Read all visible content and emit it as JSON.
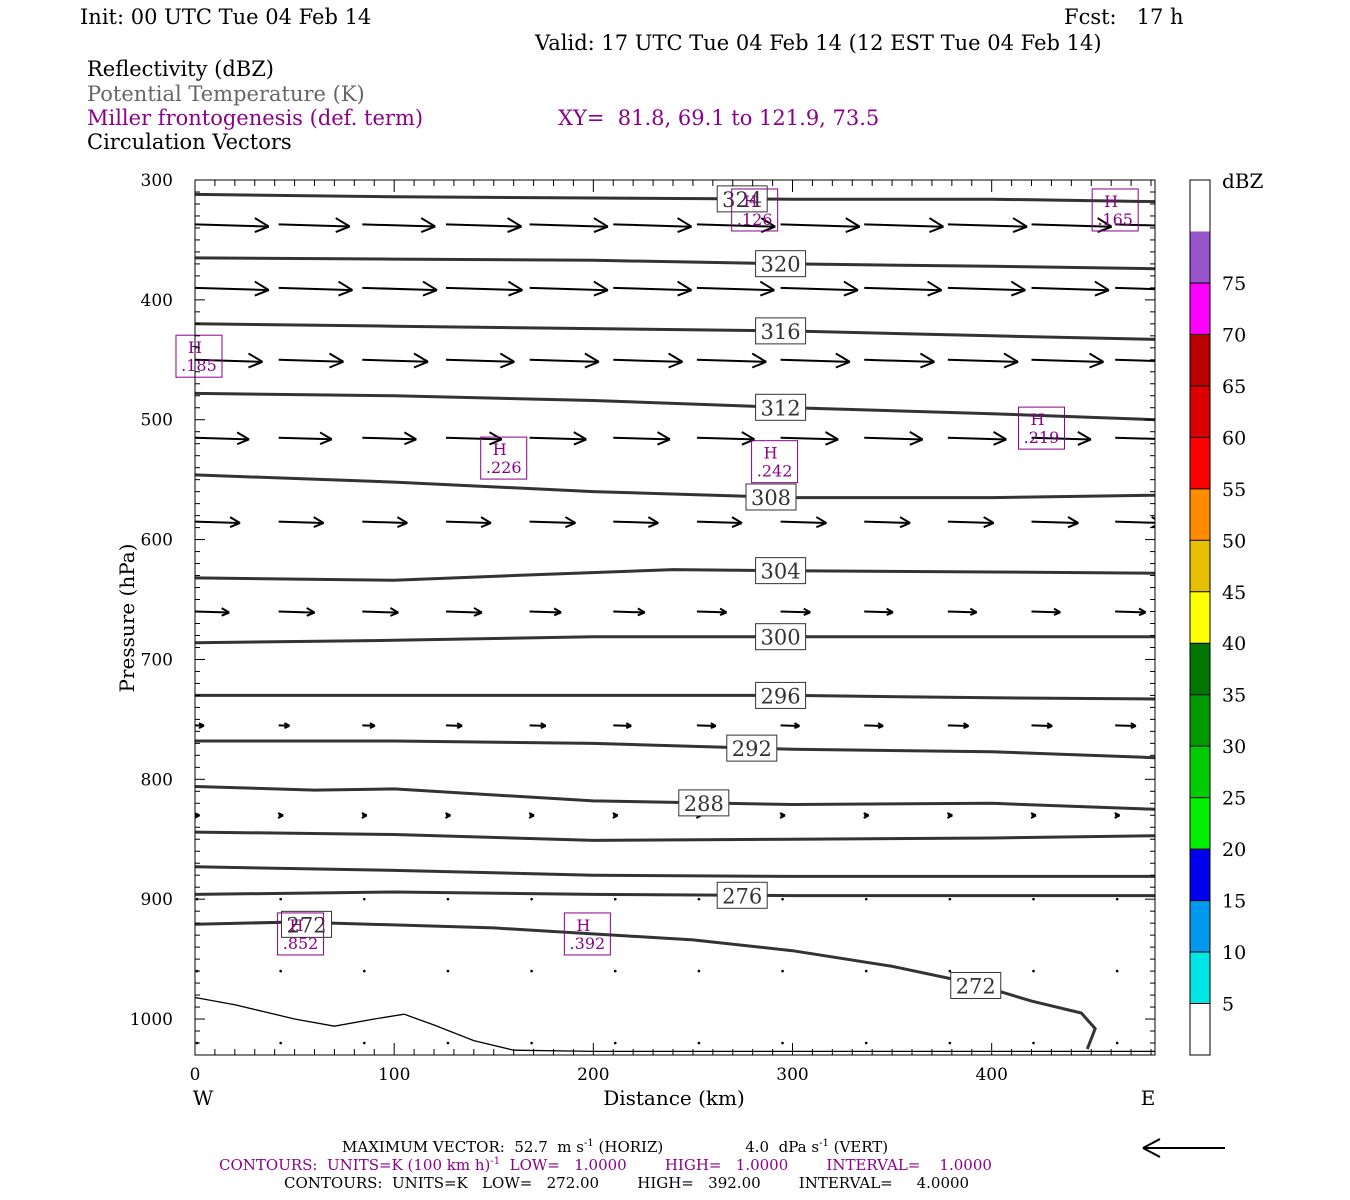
{
  "header": {
    "init": "Init: 00 UTC Tue 04 Feb 14",
    "fcst": "Fcst:   17 h",
    "valid": "Valid: 17 UTC Tue 04 Feb 14 (12 EST Tue 04 Feb 14)",
    "field1": "Reflectivity (dBZ)",
    "field2": "Potential Temperature (K)",
    "field3": "Miller frontogenesis (def. term)",
    "xy": "XY=  81.8, 69.1 to 121.9, 73.5",
    "field4": "Circulation Vectors"
  },
  "colors": {
    "theta": "#333333",
    "frontogenesis": "#8b008b",
    "vectors": "#000000"
  },
  "chart_data": {
    "type": "line",
    "xlabel": "Distance (km)",
    "ylabel": "Pressure (hPa)",
    "xlim": [
      0,
      482
    ],
    "ylim": [
      300,
      1030
    ],
    "y_scale": "linear-inverted",
    "x_ticks": [
      "0",
      "100",
      "200",
      "300",
      "400"
    ],
    "y_ticks": [
      "300",
      "400",
      "500",
      "600",
      "700",
      "800",
      "900",
      "1000"
    ],
    "x_end_labels": {
      "left": "W",
      "right": "E"
    },
    "theta_contours": [
      {
        "label": "324",
        "points": [
          [
            0,
            312
          ],
          [
            100,
            314
          ],
          [
            200,
            315
          ],
          [
            300,
            316
          ],
          [
            400,
            316
          ],
          [
            482,
            318
          ]
        ]
      },
      {
        "label": "320",
        "points": [
          [
            0,
            365
          ],
          [
            100,
            366
          ],
          [
            200,
            367
          ],
          [
            300,
            370
          ],
          [
            400,
            372
          ],
          [
            482,
            374
          ]
        ]
      },
      {
        "label": "316",
        "points": [
          [
            0,
            420
          ],
          [
            100,
            422
          ],
          [
            200,
            424
          ],
          [
            300,
            426
          ],
          [
            400,
            430
          ],
          [
            482,
            433
          ]
        ]
      },
      {
        "label": "312",
        "points": [
          [
            0,
            478
          ],
          [
            100,
            480
          ],
          [
            200,
            484
          ],
          [
            300,
            490
          ],
          [
            400,
            495
          ],
          [
            482,
            500
          ]
        ]
      },
      {
        "label": "308",
        "points": [
          [
            0,
            546
          ],
          [
            100,
            552
          ],
          [
            200,
            560
          ],
          [
            300,
            565
          ],
          [
            400,
            565
          ],
          [
            482,
            563
          ]
        ]
      },
      {
        "label": "304",
        "points": [
          [
            0,
            632
          ],
          [
            100,
            634
          ],
          [
            160,
            630
          ],
          [
            240,
            625
          ],
          [
            300,
            626
          ],
          [
            400,
            627
          ],
          [
            482,
            628
          ]
        ]
      },
      {
        "label": "300",
        "points": [
          [
            0,
            686
          ],
          [
            100,
            684
          ],
          [
            200,
            681
          ],
          [
            300,
            681
          ],
          [
            400,
            681
          ],
          [
            482,
            681
          ]
        ]
      },
      {
        "label": "296",
        "points": [
          [
            0,
            730
          ],
          [
            100,
            730
          ],
          [
            200,
            730
          ],
          [
            300,
            730
          ],
          [
            400,
            732
          ],
          [
            482,
            733
          ]
        ]
      },
      {
        "label": "292",
        "points": [
          [
            0,
            768
          ],
          [
            100,
            768
          ],
          [
            200,
            770
          ],
          [
            300,
            775
          ],
          [
            400,
            777
          ],
          [
            482,
            782
          ]
        ]
      },
      {
        "label": "288",
        "points": [
          [
            0,
            806
          ],
          [
            60,
            809
          ],
          [
            100,
            808
          ],
          [
            140,
            812
          ],
          [
            200,
            818
          ],
          [
            300,
            821
          ],
          [
            400,
            820
          ],
          [
            482,
            825
          ]
        ]
      },
      {
        "label": "",
        "points": [
          [
            0,
            844
          ],
          [
            100,
            846
          ],
          [
            200,
            851
          ],
          [
            300,
            850
          ],
          [
            400,
            849
          ],
          [
            482,
            847
          ]
        ]
      },
      {
        "label": "",
        "points": [
          [
            0,
            873
          ],
          [
            100,
            876
          ],
          [
            200,
            880
          ],
          [
            300,
            881
          ],
          [
            400,
            881
          ],
          [
            482,
            881
          ]
        ]
      },
      {
        "label": "276",
        "points": [
          [
            0,
            896
          ],
          [
            100,
            894
          ],
          [
            200,
            896
          ],
          [
            300,
            897
          ],
          [
            400,
            897
          ],
          [
            482,
            897
          ]
        ]
      },
      {
        "label": "272",
        "points": [
          [
            0,
            921
          ],
          [
            50,
            919
          ],
          [
            150,
            924
          ],
          [
            250,
            934
          ],
          [
            300,
            943
          ],
          [
            350,
            956
          ],
          [
            390,
            970
          ],
          [
            420,
            985
          ],
          [
            445,
            995
          ],
          [
            452,
            1008
          ],
          [
            448,
            1025
          ]
        ]
      }
    ],
    "boundary_line": {
      "points": [
        [
          0,
          982
        ],
        [
          20,
          988
        ],
        [
          50,
          1000
        ],
        [
          70,
          1006
        ],
        [
          90,
          1000
        ],
        [
          105,
          996
        ],
        [
          120,
          1005
        ],
        [
          140,
          1018
        ],
        [
          160,
          1026
        ],
        [
          200,
          1027
        ],
        [
          300,
          1027
        ],
        [
          400,
          1027
        ],
        [
          482,
          1027
        ]
      ]
    },
    "frontogenesis_maxima": [
      {
        "label": "H",
        "value": ".126",
        "x": 281,
        "p": 325
      },
      {
        "label": "H",
        "value": ".165",
        "x": 462,
        "p": 325
      },
      {
        "label": "H",
        "value": ".185",
        "x": 2,
        "p": 447
      },
      {
        "label": "H",
        "value": ".219",
        "x": 425,
        "p": 507
      },
      {
        "label": "H",
        "value": ".226",
        "x": 155,
        "p": 532
      },
      {
        "label": "H",
        "value": ".242",
        "x": 291,
        "p": 535
      },
      {
        "label": "H",
        "value": ".852",
        "x": 53,
        "p": 929
      },
      {
        "label": "H",
        "value": ".392",
        "x": 197,
        "p": 929
      }
    ],
    "circulation_vectors": {
      "x_columns": [
        0,
        42,
        84,
        126,
        168,
        210,
        252,
        294,
        336,
        378,
        420,
        462
      ],
      "rows": [
        {
          "p": 337,
          "u": [
            0.82,
            0.79,
            0.81,
            0.84,
            0.87,
            0.87,
            0.87,
            0.88,
            0.88,
            0.88,
            0.89,
            0.89
          ]
        },
        {
          "p": 390,
          "u": [
            0.82,
            0.82,
            0.83,
            0.85,
            0.87,
            0.87,
            0.86,
            0.86,
            0.86,
            0.86,
            0.86,
            0.86
          ]
        },
        {
          "p": 450,
          "u": [
            0.75,
            0.72,
            0.73,
            0.76,
            0.77,
            0.77,
            0.77,
            0.77,
            0.78,
            0.78,
            0.8,
            0.81
          ]
        },
        {
          "p": 515,
          "u": [
            0.6,
            0.59,
            0.6,
            0.62,
            0.63,
            0.63,
            0.64,
            0.64,
            0.65,
            0.65,
            0.66,
            0.67
          ]
        },
        {
          "p": 585,
          "u": [
            0.5,
            0.5,
            0.5,
            0.5,
            0.51,
            0.5,
            0.5,
            0.51,
            0.51,
            0.51,
            0.52,
            0.52
          ]
        },
        {
          "p": 660,
          "u": [
            0.38,
            0.4,
            0.4,
            0.4,
            0.35,
            0.35,
            0.33,
            0.33,
            0.32,
            0.32,
            0.32,
            0.34
          ]
        },
        {
          "p": 755,
          "u": [
            0.1,
            0.12,
            0.14,
            0.18,
            0.18,
            0.2,
            0.21,
            0.21,
            0.21,
            0.23,
            0.23,
            0.23
          ]
        },
        {
          "p": 830,
          "u": [
            0.05,
            0.05,
            0.05,
            0.05,
            0.05,
            0.05,
            0.05,
            0.05,
            0.05,
            0.05,
            0.05,
            0.05
          ]
        },
        {
          "p": 900,
          "u": [
            0.02,
            0.02,
            0.02,
            0.02,
            0.02,
            0.02,
            0.02,
            0.02,
            0.02,
            0.02,
            0.02,
            0.02
          ]
        },
        {
          "p": 960,
          "u": [
            0.01,
            0.01,
            0.01,
            0.01,
            0.01,
            0.01,
            0.01,
            0.01,
            0.01,
            0.01,
            0.01,
            0.01
          ]
        },
        {
          "p": 1020,
          "u": [
            0.01,
            0.01,
            0.01,
            0.01,
            0.01,
            0.01,
            0.01,
            0.01,
            0.01,
            0.01,
            0.01,
            0.01
          ]
        }
      ]
    },
    "colorbar": {
      "unit": "dBZ",
      "labels": [
        "5",
        "10",
        "15",
        "20",
        "25",
        "30",
        "35",
        "40",
        "45",
        "50",
        "55",
        "60",
        "65",
        "70",
        "75"
      ],
      "colors": [
        "#ffffff",
        "#00e5e5",
        "#0099ee",
        "#0000ee",
        "#00ee00",
        "#00cc00",
        "#009900",
        "#007700",
        "#ffff00",
        "#e5bf00",
        "#ff8c00",
        "#ff0000",
        "#dd0000",
        "#bb0000",
        "#ff00ff",
        "#9955cc",
        "#ffffff"
      ]
    }
  },
  "footer": {
    "max_vector_label": "MAXIMUM VECTOR:  52.7  m s",
    "horiz": " (HORIZ)",
    "vert_value": "4.0  dPa s",
    "vert": " (VERT)",
    "exp": "-1",
    "contours1_a": "CONTOURS:  UNITS=K (100 km h)",
    "contours1_b": "  LOW=   1.0000        HIGH=   1.0000        INTERVAL=    1.0000",
    "contours2": "CONTOURS:  UNITS=K   LOW=   272.00        HIGH=   392.00        INTERVAL=     4.0000"
  }
}
